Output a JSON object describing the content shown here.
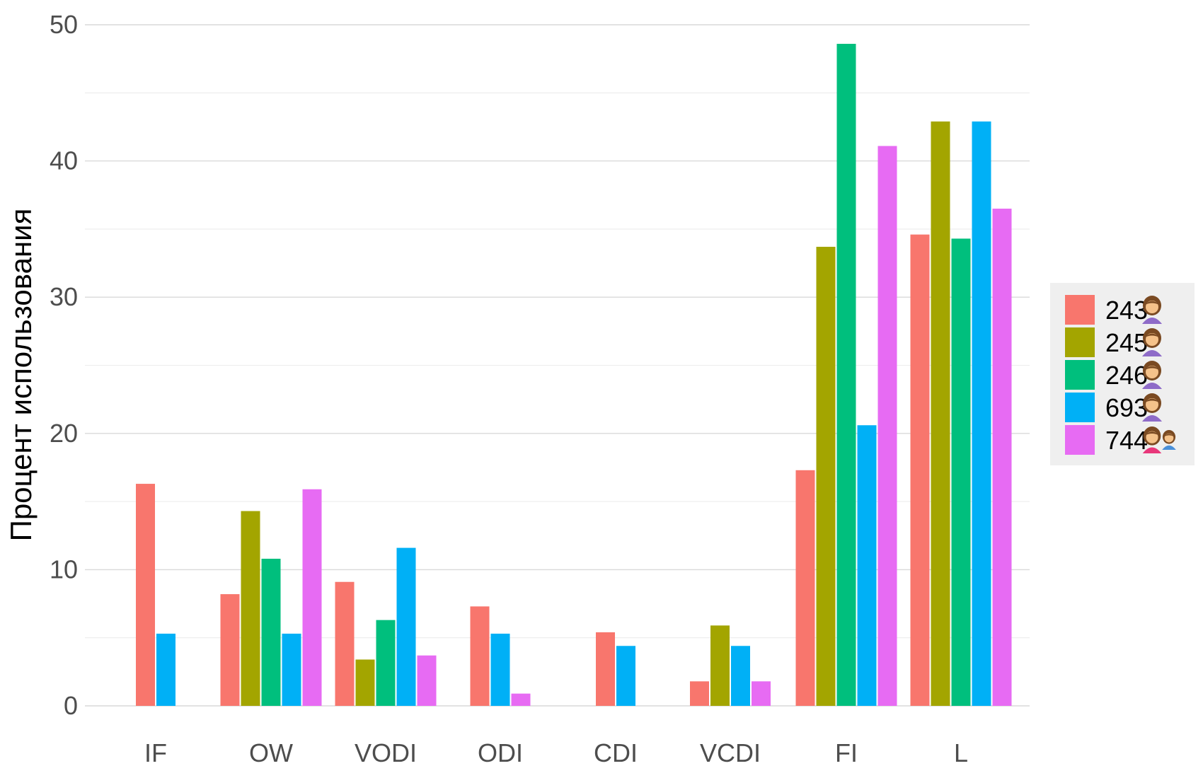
{
  "chart_data": {
    "type": "bar",
    "title": "",
    "xlabel": "",
    "ylabel": "Процент использования",
    "ylim": [
      0,
      50
    ],
    "y_ticks": [
      0,
      10,
      20,
      30,
      40,
      50
    ],
    "grid": true,
    "legend_position": "right",
    "categories": [
      "IF",
      "OW",
      "VODI",
      "ODI",
      "CDI",
      "VCDI",
      "FI",
      "L"
    ],
    "series": [
      {
        "name": "243",
        "icon": "woman-icon",
        "color": "#F8766D",
        "values": [
          16.3,
          8.2,
          9.1,
          7.3,
          5.4,
          1.8,
          17.3,
          34.6
        ]
      },
      {
        "name": "245",
        "icon": "woman-icon",
        "color": "#A3A500",
        "values": [
          null,
          14.3,
          3.4,
          null,
          null,
          5.9,
          33.7,
          42.9
        ]
      },
      {
        "name": "246",
        "icon": "woman-icon",
        "color": "#00BF7D",
        "values": [
          null,
          10.8,
          6.3,
          null,
          null,
          null,
          48.6,
          34.3
        ]
      },
      {
        "name": "693",
        "icon": "woman-icon",
        "color": "#00B0F6",
        "values": [
          5.3,
          5.3,
          11.6,
          5.3,
          4.4,
          4.4,
          20.6,
          42.9
        ]
      },
      {
        "name": "744",
        "icon": "woman-and-child-icon",
        "color": "#E76BF3",
        "values": [
          null,
          15.9,
          3.7,
          0.9,
          null,
          1.8,
          41.1,
          36.5
        ]
      }
    ]
  }
}
